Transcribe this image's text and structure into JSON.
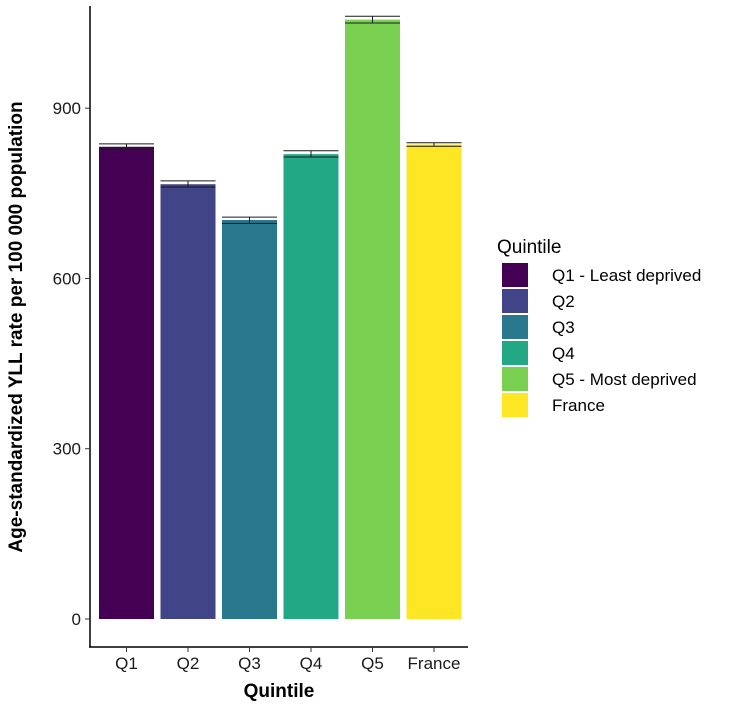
{
  "chart_data": {
    "type": "bar",
    "title": "",
    "xlabel": "Quintile",
    "ylabel": "Age-standardized YLL rate per 100 000 population",
    "categories": [
      "Q1",
      "Q2",
      "Q3",
      "Q4",
      "Q5",
      "France"
    ],
    "values": [
      832,
      766,
      703,
      819,
      1056,
      836
    ],
    "error_low": [
      828,
      761,
      697,
      814,
      1050,
      833
    ],
    "error_high": [
      837,
      772,
      708,
      825,
      1062,
      839
    ],
    "colors": [
      "#440154",
      "#414487",
      "#2A788E",
      "#22A884",
      "#7AD151",
      "#FDE725"
    ],
    "ylim": [
      0,
      1080
    ],
    "yticks": [
      0,
      300,
      600,
      900
    ],
    "grid": false,
    "legend": {
      "title": "Quintile",
      "position": "right",
      "entries": [
        "Q1 - Least deprived",
        "Q2",
        "Q3",
        "Q4",
        "Q5 - Most deprived",
        "France"
      ]
    }
  }
}
